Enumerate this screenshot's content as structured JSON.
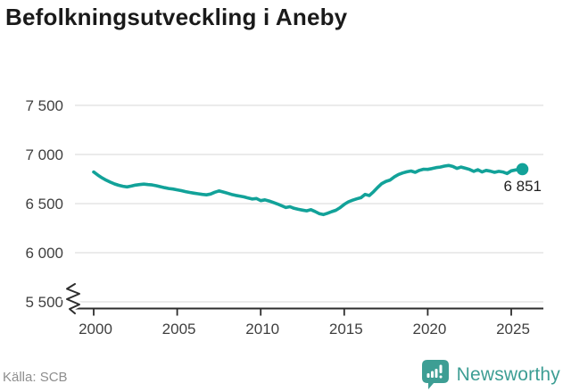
{
  "title": "Befolkningsutveckling i Aneby",
  "footer": {
    "source": "Källa: SCB",
    "brand": "Newsworthy",
    "brand_icon": "bar-chart-speech-bubble-icon"
  },
  "colors": {
    "line": "#12a299",
    "brand_teal": "#3d9e94",
    "grid": "#e0e0e0",
    "axis": "#2d2d2d",
    "tick_text": "#3f3f3f",
    "title_text": "#1a1a1a",
    "source_text": "#8e8e8e",
    "label_text": "#1f1f1f"
  },
  "chart_data": {
    "type": "line",
    "title": "Befolkningsutveckling i Aneby",
    "xlabel": "",
    "ylabel": "",
    "x_ticks": [
      2000,
      2005,
      2010,
      2015,
      2020,
      2025
    ],
    "y_ticks": [
      7500,
      7000,
      6500,
      6000,
      5500
    ],
    "y_tick_labels": [
      "7 500",
      "7 000",
      "6 500",
      "6 000",
      "5 500"
    ],
    "ylim": [
      5500,
      7500
    ],
    "xlim": [
      2000,
      2027
    ],
    "axis_break_at_bottom": true,
    "grid": "horizontal",
    "legend": "none",
    "latest_value": 6851,
    "end_label": "6 851",
    "series": [
      {
        "name": "Befolkning",
        "x_type": "decimal_year",
        "points": [
          [
            2000.0,
            6822
          ],
          [
            2000.25,
            6790
          ],
          [
            2000.5,
            6762
          ],
          [
            2000.75,
            6738
          ],
          [
            2001.0,
            6718
          ],
          [
            2001.25,
            6700
          ],
          [
            2001.5,
            6686
          ],
          [
            2001.75,
            6676
          ],
          [
            2002.0,
            6670
          ],
          [
            2002.25,
            6678
          ],
          [
            2002.5,
            6688
          ],
          [
            2002.75,
            6694
          ],
          [
            2003.0,
            6698
          ],
          [
            2003.25,
            6694
          ],
          [
            2003.5,
            6690
          ],
          [
            2003.75,
            6682
          ],
          [
            2004.0,
            6672
          ],
          [
            2004.25,
            6662
          ],
          [
            2004.5,
            6654
          ],
          [
            2004.75,
            6648
          ],
          [
            2005.0,
            6640
          ],
          [
            2005.25,
            6632
          ],
          [
            2005.5,
            6622
          ],
          [
            2005.75,
            6614
          ],
          [
            2006.0,
            6606
          ],
          [
            2006.25,
            6600
          ],
          [
            2006.5,
            6594
          ],
          [
            2006.75,
            6589
          ],
          [
            2007.0,
            6597
          ],
          [
            2007.25,
            6615
          ],
          [
            2007.5,
            6629
          ],
          [
            2007.75,
            6618
          ],
          [
            2008.0,
            6606
          ],
          [
            2008.25,
            6594
          ],
          [
            2008.5,
            6584
          ],
          [
            2008.75,
            6576
          ],
          [
            2009.0,
            6568
          ],
          [
            2009.25,
            6556
          ],
          [
            2009.5,
            6546
          ],
          [
            2009.75,
            6552
          ],
          [
            2010.0,
            6530
          ],
          [
            2010.25,
            6538
          ],
          [
            2010.5,
            6526
          ],
          [
            2010.75,
            6512
          ],
          [
            2011.0,
            6496
          ],
          [
            2011.25,
            6478
          ],
          [
            2011.5,
            6460
          ],
          [
            2011.75,
            6468
          ],
          [
            2012.0,
            6452
          ],
          [
            2012.25,
            6442
          ],
          [
            2012.5,
            6434
          ],
          [
            2012.75,
            6426
          ],
          [
            2013.0,
            6438
          ],
          [
            2013.25,
            6420
          ],
          [
            2013.5,
            6398
          ],
          [
            2013.75,
            6388
          ],
          [
            2014.0,
            6402
          ],
          [
            2014.25,
            6418
          ],
          [
            2014.5,
            6432
          ],
          [
            2014.75,
            6458
          ],
          [
            2015.0,
            6492
          ],
          [
            2015.25,
            6518
          ],
          [
            2015.5,
            6535
          ],
          [
            2015.75,
            6548
          ],
          [
            2016.0,
            6560
          ],
          [
            2016.25,
            6594
          ],
          [
            2016.5,
            6582
          ],
          [
            2016.75,
            6620
          ],
          [
            2017.0,
            6664
          ],
          [
            2017.25,
            6704
          ],
          [
            2017.5,
            6726
          ],
          [
            2017.75,
            6740
          ],
          [
            2018.0,
            6772
          ],
          [
            2018.25,
            6796
          ],
          [
            2018.5,
            6812
          ],
          [
            2018.75,
            6824
          ],
          [
            2019.0,
            6832
          ],
          [
            2019.25,
            6818
          ],
          [
            2019.5,
            6838
          ],
          [
            2019.75,
            6850
          ],
          [
            2020.0,
            6848
          ],
          [
            2020.25,
            6856
          ],
          [
            2020.5,
            6866
          ],
          [
            2020.75,
            6872
          ],
          [
            2021.0,
            6882
          ],
          [
            2021.25,
            6888
          ],
          [
            2021.5,
            6878
          ],
          [
            2021.75,
            6858
          ],
          [
            2022.0,
            6872
          ],
          [
            2022.25,
            6860
          ],
          [
            2022.5,
            6848
          ],
          [
            2022.75,
            6828
          ],
          [
            2023.0,
            6845
          ],
          [
            2023.25,
            6822
          ],
          [
            2023.5,
            6838
          ],
          [
            2023.75,
            6830
          ],
          [
            2024.0,
            6818
          ],
          [
            2024.25,
            6828
          ],
          [
            2024.5,
            6822
          ],
          [
            2024.75,
            6806
          ],
          [
            2025.0,
            6834
          ],
          [
            2025.3,
            6844
          ],
          [
            2025.67,
            6851
          ]
        ]
      }
    ]
  }
}
